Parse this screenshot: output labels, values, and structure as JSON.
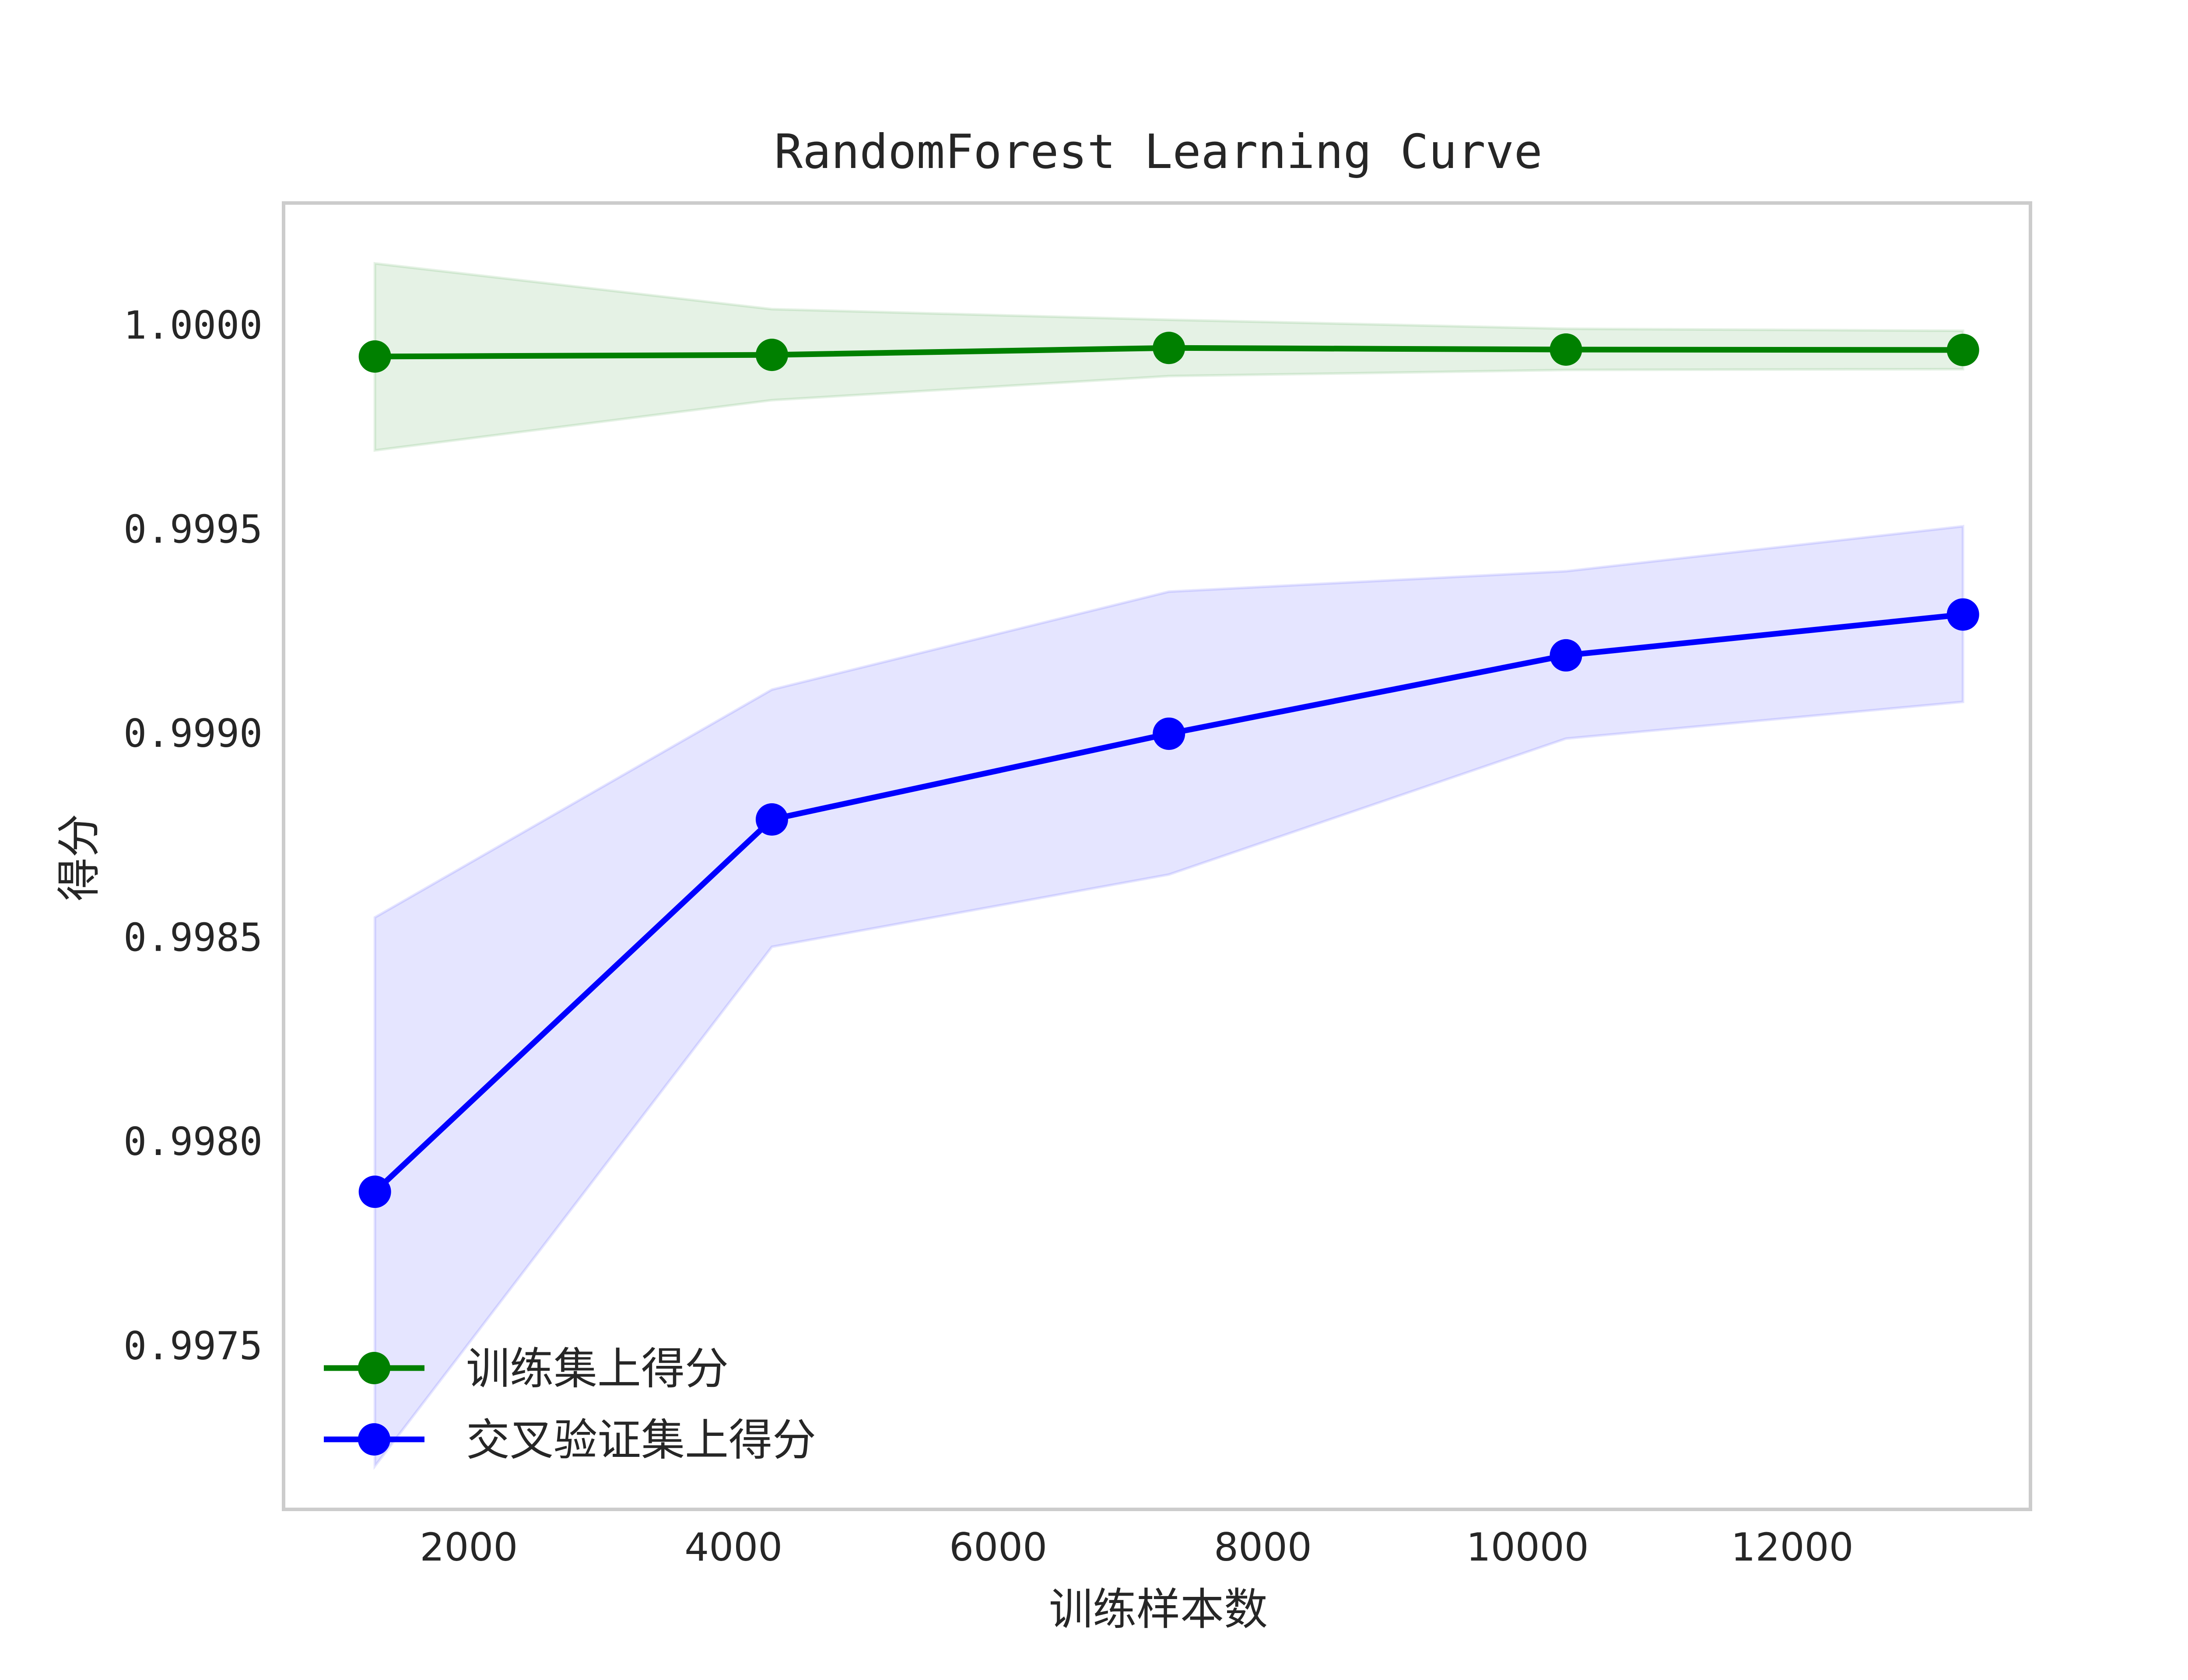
{
  "chart_data": {
    "type": "line",
    "title": "RandomForest Learning Curve",
    "xlabel": "训练样本数",
    "ylabel": "得分",
    "xlim": [
      600,
      13800
    ],
    "ylim": [
      0.9971,
      1.0003
    ],
    "xticks": [
      2000,
      4000,
      6000,
      8000,
      10000,
      12000
    ],
    "xtick_labels": [
      "2000",
      "4000",
      "6000",
      "8000",
      "10000",
      "12000"
    ],
    "yticks": [
      0.9975,
      0.998,
      0.9985,
      0.999,
      0.9995,
      1.0
    ],
    "ytick_labels": [
      "0.9975",
      "0.9980",
      "0.9985",
      "0.9990",
      "0.9995",
      "1.0000"
    ],
    "grid": false,
    "legend_position": "lower-left",
    "x": [
      1290,
      4290,
      7290,
      10290,
      13290
    ],
    "series": [
      {
        "name": "训练集上得分",
        "color": "#008000",
        "values": [
          0.999924,
          0.999928,
          0.999945,
          0.999941,
          0.99994
        ],
        "band_upper": [
          1.000152,
          1.00004,
          1.000014,
          0.999992,
          0.999987
        ],
        "band_lower": [
          0.999694,
          0.999817,
          0.999876,
          0.999891,
          0.999893
        ],
        "band_color": "#008000"
      },
      {
        "name": "交叉验证集上得分",
        "color": "#0000ff",
        "values": [
          0.997878,
          0.99879,
          0.999,
          0.999192,
          0.999292
        ],
        "band_upper": [
          0.99855,
          0.999108,
          0.999348,
          0.999398,
          0.999508
        ],
        "band_lower": [
          0.997206,
          0.998478,
          0.998655,
          0.998988,
          0.999078
        ],
        "band_color": "#0000ff"
      }
    ]
  }
}
